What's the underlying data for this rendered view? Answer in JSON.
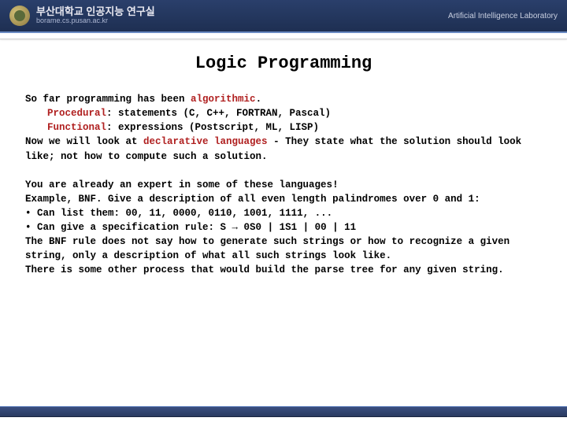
{
  "header": {
    "title_kr": "부산대학교 인공지능 연구실",
    "subtitle": "borame.cs.pusan.ac.kr",
    "right_label": "Artificial Intelligence Laboratory"
  },
  "slide": {
    "title": "Logic Programming",
    "p1_l1a": "So far programming has been ",
    "p1_l1b": "algorithmic",
    "p1_l1c": ".",
    "p1_l2a": "Procedural",
    "p1_l2b": ": statements (C, C++, FORTRAN, Pascal)",
    "p1_l3a": "Functional",
    "p1_l3b": ": expressions (Postscript, ML, LISP)",
    "p1_l4a": "Now we will look at ",
    "p1_l4b": "declarative languages",
    "p1_l4c": " - They state what the solution should look like; not how to compute such a solution.",
    "p2_l1": "You are already an expert in some of these languages!",
    "p2_l2": "Example, BNF. Give a description of all even length palindromes over 0 and 1:",
    "p2_b1": "Can list them: 00, 11, 0000, 0110, 1001, 1111, ...",
    "p2_b2": "Can give a specification rule: S → 0S0 | 1S1 | 00 | 11",
    "p2_l3": "The BNF rule does not say how to generate such strings or how to recognize a given string, only a description of what all such strings look like.",
    "p2_l4": "There is some other process that would build the parse tree for any given string."
  },
  "colors": {
    "highlight": "#b02020",
    "header_bg": "#1e2f52",
    "text": "#000000"
  }
}
